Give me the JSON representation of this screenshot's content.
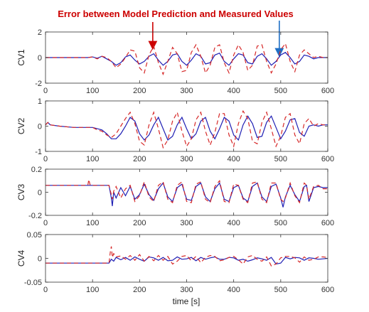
{
  "chart_data": {
    "type": "line",
    "title": "",
    "annotation": {
      "text": "Error between Model Prediction and Measured Values",
      "red_arrow_x": 228,
      "blue_arrow_x": 497
    },
    "colors": {
      "measured": "#1f1fb4",
      "predicted": "#d62828",
      "annotation_red": "#cc0000",
      "annotation_blue": "#1f6fc5"
    },
    "xlabel": "time [s]",
    "xlim": [
      0,
      600
    ],
    "xticks": [
      "0",
      "100",
      "200",
      "300",
      "400",
      "500",
      "600"
    ],
    "series_styles": [
      {
        "style": "solid",
        "color": "#1f1fb4"
      },
      {
        "style": "dashed",
        "color": "#d62828"
      }
    ],
    "panels": [
      {
        "ylabel": "CV1",
        "ylim": [
          -2,
          2
        ],
        "yticks": [
          "2",
          "0",
          "-2"
        ],
        "series": [
          {
            "style": "solid",
            "x": [
              0,
              50,
              90,
              100,
              110,
              120,
              130,
              140,
              150,
              160,
              170,
              180,
              190,
              200,
              210,
              220,
              230,
              240,
              250,
              260,
              270,
              280,
              290,
              300,
              310,
              320,
              330,
              340,
              350,
              360,
              370,
              380,
              390,
              400,
              410,
              420,
              430,
              440,
              450,
              460,
              470,
              480,
              490,
              500,
              510,
              520,
              530,
              540,
              550,
              560,
              570,
              580,
              590,
              600
            ],
            "y": [
              0,
              0,
              0,
              0.05,
              -0.05,
              0.1,
              -0.1,
              -0.3,
              -0.6,
              -0.4,
              0.05,
              0.2,
              -0.2,
              -0.5,
              -0.3,
              0.1,
              0.3,
              -0.2,
              -0.6,
              -0.3,
              0.2,
              0.3,
              -0.3,
              -0.6,
              -0.2,
              0.3,
              0.1,
              -0.5,
              -0.4,
              0.2,
              0.35,
              -0.3,
              -0.6,
              -0.1,
              0.3,
              0.2,
              -0.4,
              -0.5,
              0.1,
              0.3,
              -0.1,
              -0.6,
              -0.3,
              0.2,
              0.4,
              0,
              -0.5,
              -0.3,
              0.2,
              0.1,
              -0.1,
              0,
              0,
              0
            ]
          },
          {
            "style": "dashed",
            "x": [
              0,
              50,
              90,
              100,
              110,
              120,
              130,
              140,
              150,
              160,
              170,
              180,
              190,
              200,
              210,
              220,
              230,
              240,
              250,
              260,
              270,
              280,
              290,
              300,
              310,
              320,
              330,
              340,
              350,
              360,
              370,
              380,
              390,
              400,
              410,
              420,
              430,
              440,
              450,
              460,
              470,
              480,
              490,
              500,
              510,
              520,
              530,
              540,
              550,
              560,
              570,
              580,
              590,
              600
            ],
            "y": [
              0,
              0,
              0,
              0.05,
              -0.1,
              0.1,
              0,
              -0.3,
              -0.8,
              -0.5,
              0,
              0.6,
              0.5,
              -0.8,
              -1.2,
              0.2,
              0.9,
              -0.4,
              -1.3,
              -0.3,
              0.8,
              0.3,
              -1.1,
              -1,
              0.4,
              1.0,
              0.1,
              -1.2,
              -0.6,
              0.8,
              1.0,
              -0.4,
              -1.2,
              0.2,
              1.0,
              0.4,
              -1.0,
              -0.6,
              0.9,
              1.0,
              -0.3,
              -1.2,
              -0.5,
              0.6,
              1.1,
              -0.3,
              -1.1,
              0.2,
              0.6,
              0.3,
              0,
              0.1,
              0,
              0
            ]
          }
        ]
      },
      {
        "ylabel": "CV2",
        "ylim": [
          -1,
          1
        ],
        "yticks": [
          "1",
          "0",
          "-1"
        ],
        "series": [
          {
            "style": "solid",
            "x": [
              0,
              5,
              10,
              30,
              60,
              90,
              100,
              110,
              120,
              130,
              140,
              150,
              160,
              170,
              180,
              190,
              200,
              210,
              220,
              230,
              240,
              250,
              260,
              270,
              280,
              290,
              300,
              310,
              320,
              330,
              340,
              350,
              360,
              370,
              380,
              390,
              400,
              410,
              420,
              430,
              440,
              450,
              460,
              470,
              480,
              490,
              500,
              510,
              520,
              530,
              540,
              550,
              560,
              570,
              580,
              590,
              600
            ],
            "y": [
              0.05,
              0.15,
              0.05,
              0,
              -0.05,
              -0.05,
              -0.05,
              -0.1,
              -0.15,
              -0.3,
              -0.5,
              -0.5,
              -0.3,
              0,
              0.35,
              0.2,
              -0.3,
              -0.55,
              -0.35,
              0.05,
              0.35,
              -0.1,
              -0.55,
              -0.4,
              0.05,
              0.35,
              -0.1,
              -0.5,
              -0.3,
              0.2,
              0.35,
              -0.2,
              -0.5,
              -0.1,
              0.35,
              0.2,
              -0.35,
              -0.55,
              0.05,
              0.4,
              0.1,
              -0.45,
              -0.4,
              0.15,
              0.4,
              -0.05,
              -0.5,
              -0.2,
              0.25,
              0.3,
              -0.25,
              -0.4,
              0,
              0.05,
              0,
              0.05,
              0.05
            ]
          },
          {
            "style": "dashed",
            "x": [
              0,
              5,
              10,
              30,
              60,
              90,
              100,
              110,
              120,
              130,
              140,
              150,
              160,
              170,
              180,
              190,
              200,
              210,
              220,
              230,
              240,
              250,
              260,
              270,
              280,
              290,
              300,
              310,
              320,
              330,
              340,
              350,
              360,
              370,
              380,
              390,
              400,
              410,
              420,
              430,
              440,
              450,
              460,
              470,
              480,
              490,
              500,
              510,
              520,
              530,
              540,
              550,
              560,
              570,
              580,
              590,
              600
            ],
            "y": [
              0.05,
              0.15,
              0.05,
              0,
              -0.05,
              -0.05,
              -0.05,
              -0.15,
              -0.2,
              -0.35,
              -0.45,
              -0.3,
              0,
              0.3,
              0.55,
              0.1,
              -0.6,
              -0.75,
              0.05,
              0.55,
              -0.1,
              -0.85,
              -0.55,
              0.2,
              0.55,
              -0.2,
              -0.8,
              -0.5,
              0.25,
              0.55,
              -0.2,
              -0.75,
              -0.25,
              0.5,
              0.5,
              -0.35,
              -0.8,
              0.1,
              0.6,
              0.3,
              -0.6,
              -0.7,
              0.15,
              0.55,
              -0.1,
              -0.8,
              -0.4,
              0.35,
              0.5,
              -0.35,
              -0.7,
              0.1,
              0.3,
              0,
              0.1,
              0.05,
              0.05
            ]
          }
        ]
      },
      {
        "ylabel": "CV3",
        "ylim": [
          -0.2,
          0.2
        ],
        "yticks": [
          "0.2",
          "0",
          "-0.2"
        ],
        "series": [
          {
            "style": "solid",
            "x": [
              0,
              90,
              135,
              140,
              142,
              145,
              150,
              160,
              170,
              180,
              190,
              200,
              210,
              220,
              230,
              240,
              250,
              260,
              270,
              280,
              290,
              300,
              310,
              320,
              330,
              340,
              350,
              360,
              370,
              380,
              390,
              400,
              410,
              420,
              430,
              440,
              450,
              460,
              470,
              480,
              490,
              500,
              505,
              510,
              520,
              530,
              540,
              550,
              555,
              560,
              570,
              580,
              590,
              600
            ],
            "y": [
              0.06,
              0.06,
              0.06,
              -0.05,
              -0.12,
              0,
              -0.05,
              0.04,
              -0.03,
              0.05,
              -0.06,
              -0.02,
              0.07,
              -0.02,
              -0.07,
              0.03,
              0.08,
              -0.04,
              -0.08,
              0.04,
              0.07,
              -0.06,
              -0.07,
              0.05,
              0.08,
              -0.04,
              -0.08,
              0.03,
              0.08,
              -0.06,
              -0.08,
              0.04,
              0.06,
              -0.05,
              -0.08,
              0.05,
              0.08,
              -0.04,
              -0.08,
              0.05,
              0.07,
              -0.05,
              -0.13,
              -0.04,
              0.06,
              -0.02,
              -0.08,
              0.05,
              0.06,
              -0.08,
              0.04,
              0.05,
              0.04,
              0.04
            ]
          },
          {
            "style": "dashed",
            "x": [
              0,
              90,
              92,
              95,
              135,
              140,
              142,
              145,
              150,
              160,
              170,
              180,
              190,
              200,
              210,
              220,
              230,
              240,
              250,
              260,
              270,
              280,
              290,
              300,
              310,
              320,
              330,
              340,
              350,
              360,
              370,
              380,
              390,
              400,
              410,
              420,
              430,
              440,
              450,
              460,
              470,
              480,
              490,
              500,
              505,
              510,
              520,
              530,
              540,
              550,
              555,
              560,
              570,
              580,
              590,
              600
            ],
            "y": [
              0.06,
              0.06,
              0.11,
              0.06,
              0.06,
              -0.02,
              -0.06,
              0.01,
              0.05,
              -0.05,
              0.03,
              0.06,
              -0.08,
              -0.03,
              0.09,
              -0.04,
              -0.08,
              0.06,
              0.09,
              -0.06,
              -0.09,
              0.06,
              0.09,
              -0.08,
              -0.09,
              0.07,
              0.09,
              -0.06,
              -0.09,
              0.05,
              0.1,
              -0.08,
              -0.09,
              0.07,
              0.06,
              -0.06,
              -0.09,
              0.08,
              0.09,
              -0.06,
              -0.09,
              0.08,
              0.08,
              -0.06,
              -0.08,
              -0.05,
              0.08,
              -0.03,
              -0.09,
              0.08,
              0.06,
              -0.06,
              0.05,
              0.06,
              0.03,
              0.03
            ]
          }
        ]
      },
      {
        "ylabel": "CV4",
        "ylim": [
          -0.05,
          0.05
        ],
        "yticks": [
          "0.05",
          "0",
          "-0.05"
        ],
        "series": [
          {
            "style": "solid",
            "x": [
              0,
              90,
              135,
              140,
              145,
              150,
              160,
              170,
              180,
              190,
              200,
              210,
              220,
              230,
              240,
              250,
              260,
              270,
              280,
              290,
              300,
              310,
              320,
              330,
              340,
              350,
              360,
              370,
              380,
              390,
              400,
              410,
              420,
              430,
              440,
              450,
              460,
              470,
              480,
              490,
              500,
              510,
              520,
              530,
              540,
              550,
              560,
              570,
              580,
              590,
              600
            ],
            "y": [
              -0.01,
              -0.01,
              -0.01,
              -0.002,
              -0.006,
              0.002,
              -0.003,
              0.002,
              -0.004,
              0.003,
              -0.002,
              -0.006,
              0.003,
              0.001,
              -0.004,
              0.002,
              -0.005,
              -0.004,
              0.003,
              -0.002,
              -0.001,
              0.002,
              -0.005,
              0.002,
              -0.002,
              0.001,
              0.003,
              -0.002,
              -0.002,
              0.002,
              0.001,
              -0.004,
              -0.002,
              -0.006,
              -0.003,
              0.001,
              -0.001,
              -0.004,
              0.002,
              -0.012,
              -0.01,
              0.002,
              -0.001,
              0.002,
              0.001,
              -0.004,
              0.001,
              0,
              -0.002,
              -0.001,
              0
            ]
          },
          {
            "style": "dashed",
            "x": [
              0,
              90,
              135,
              138,
              140,
              142,
              145,
              150,
              160,
              170,
              180,
              190,
              200,
              210,
              220,
              230,
              240,
              250,
              260,
              270,
              280,
              290,
              300,
              310,
              320,
              330,
              340,
              350,
              360,
              370,
              380,
              390,
              400,
              410,
              420,
              430,
              440,
              450,
              460,
              470,
              480,
              490,
              500,
              510,
              520,
              530,
              540,
              550,
              560,
              570,
              580,
              590,
              600
            ],
            "y": [
              -0.01,
              -0.01,
              -0.01,
              0.015,
              0.025,
              0.002,
              0.01,
              0.003,
              0.005,
              -0.002,
              0.006,
              -0.004,
              0.008,
              -0.006,
              0.004,
              -0.005,
              0.006,
              -0.004,
              0.004,
              -0.012,
              -0.006,
              0.004,
              0.006,
              -0.005,
              0.004,
              -0.009,
              0.002,
              0.006,
              0.004,
              -0.005,
              -0.003,
              0.002,
              0.004,
              -0.003,
              -0.012,
              0.003,
              0.006,
              -0.002,
              -0.006,
              0.003,
              -0.016,
              -0.012,
              0.001,
              0.004,
              0.004,
              0.001,
              -0.008,
              0.003,
              -0.004,
              -0.002,
              0.003,
              0.003,
              0.002
            ]
          }
        ]
      }
    ]
  }
}
